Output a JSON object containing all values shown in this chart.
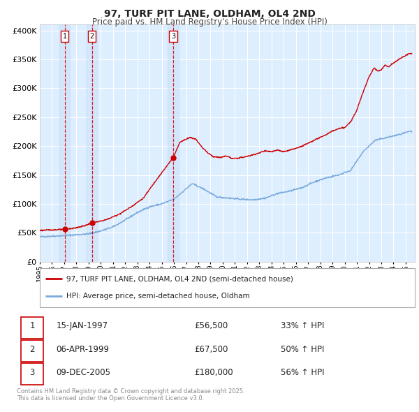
{
  "title": "97, TURF PIT LANE, OLDHAM, OL4 2ND",
  "subtitle": "Price paid vs. HM Land Registry's House Price Index (HPI)",
  "legend1": "97, TURF PIT LANE, OLDHAM, OL4 2ND (semi-detached house)",
  "legend2": "HPI: Average price, semi-detached house, Oldham",
  "footnote": "Contains HM Land Registry data © Crown copyright and database right 2025.\nThis data is licensed under the Open Government Licence v3.0.",
  "line_color_red": "#cc0000",
  "line_color_blue": "#7aaadd",
  "plot_bg_color": "#ddeeff",
  "grid_color": "#ffffff",
  "vline_color": "#cc0000",
  "sales": [
    {
      "num": 1,
      "date_dec": 1997.04,
      "price": 56500,
      "label": "15-JAN-1997",
      "price_str": "£56,500",
      "hpi_str": "33% ↑ HPI"
    },
    {
      "num": 2,
      "date_dec": 1999.27,
      "price": 67500,
      "label": "06-APR-1999",
      "price_str": "£67,500",
      "hpi_str": "50% ↑ HPI"
    },
    {
      "num": 3,
      "date_dec": 2005.93,
      "price": 180000,
      "label": "09-DEC-2005",
      "price_str": "£180,000",
      "hpi_str": "56% ↑ HPI"
    }
  ],
  "ylim": [
    0,
    410000
  ],
  "yticks": [
    0,
    50000,
    100000,
    150000,
    200000,
    250000,
    300000,
    350000,
    400000
  ],
  "ytick_labels": [
    "£0",
    "£50K",
    "£100K",
    "£150K",
    "£200K",
    "£250K",
    "£300K",
    "£350K",
    "£400K"
  ],
  "xlim_start": 1995.0,
  "xlim_end": 2025.75
}
